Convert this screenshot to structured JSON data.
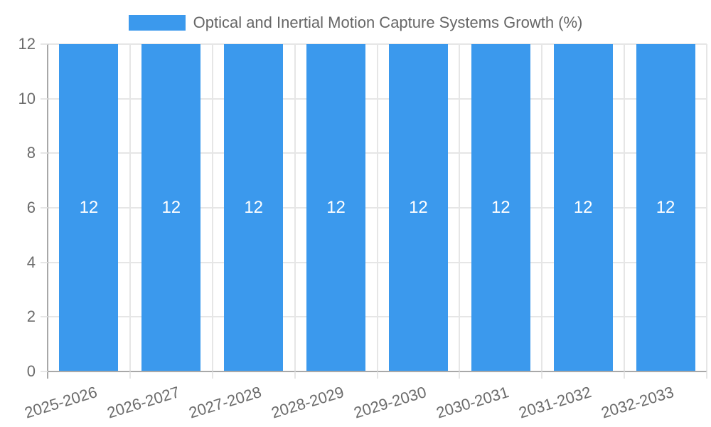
{
  "chart_data": {
    "type": "bar",
    "title": "Optical and Inertial Motion Capture Systems Growth (%)",
    "legend": {
      "label": "Optical and Inertial Motion Capture Systems Growth (%)",
      "position": "top"
    },
    "categories": [
      "2025-2026",
      "2026-2027",
      "2027-2028",
      "2028-2029",
      "2029-2030",
      "2030-2031",
      "2031-2032",
      "2032-2033"
    ],
    "series": [
      {
        "name": "Optical and Inertial Motion Capture Systems Growth (%)",
        "values": [
          12,
          12,
          12,
          12,
          12,
          12,
          12,
          12
        ]
      }
    ],
    "bar_value_labels": [
      "12",
      "12",
      "12",
      "12",
      "12",
      "12",
      "12",
      "12"
    ],
    "xlabel": "",
    "ylabel": "",
    "ylim": [
      0,
      12
    ],
    "yticks": [
      0,
      2,
      4,
      6,
      8,
      10,
      12
    ],
    "grid": true,
    "colors": {
      "bar": "#3b99ed",
      "grid": "#e6e6e6",
      "axis": "#a8a8a8",
      "tick_text": "#6b6b6b",
      "legend_text": "#666666",
      "bar_label": "#ffffff",
      "background": "#ffffff"
    }
  }
}
